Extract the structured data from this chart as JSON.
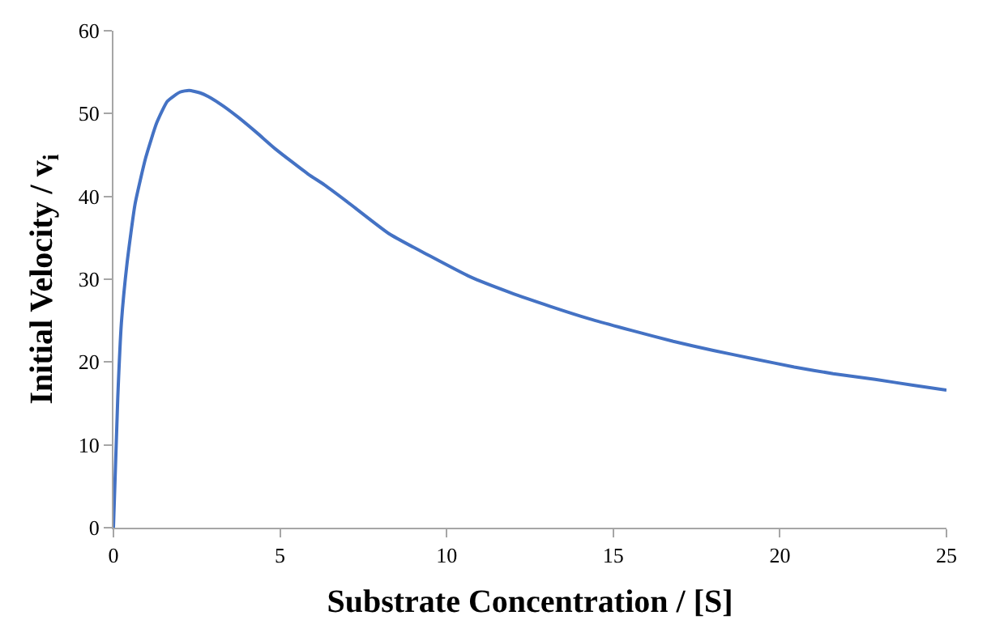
{
  "chart_data": {
    "type": "line",
    "xlabel": "Substrate Concentration / [S]",
    "ylabel": "Initial Velocity / v$_{i}$",
    "x": [
      0,
      0.13,
      0.24,
      0.41,
      0.65,
      0.97,
      1.3,
      1.62,
      2.0,
      2.27,
      2.6,
      2.92,
      3.3,
      3.73,
      4.3,
      4.87,
      5.84,
      6.33,
      7.0,
      8.27,
      9.5,
      10.7,
      11.9,
      13.13,
      14.3,
      15.56,
      16.8,
      18.0,
      19.2,
      20.43,
      21.6,
      22.86,
      24.0,
      25.0
    ],
    "series": [
      {
        "color": "#4472c4",
        "values": [
          0,
          15.7,
          24.8,
          32,
          39.1,
          44.7,
          48.9,
          51.5,
          52.6,
          52.8,
          52.5,
          51.9,
          50.9,
          49.6,
          47.7,
          45.7,
          42.7,
          41.4,
          39.4,
          35.5,
          32.8,
          30.3,
          28.4,
          26.7,
          25.2,
          23.8,
          22.5,
          21.4,
          20.4,
          19.4,
          18.6,
          17.9,
          17.2,
          16.6
        ]
      }
    ],
    "xlim": [
      0,
      25
    ],
    "xticks": [
      0,
      5,
      10,
      15,
      20,
      25
    ],
    "ylim": [
      0,
      60
    ],
    "yticks": [
      0,
      10,
      20,
      30,
      40,
      50,
      60
    ],
    "marker": "none",
    "line_style": "solid"
  }
}
